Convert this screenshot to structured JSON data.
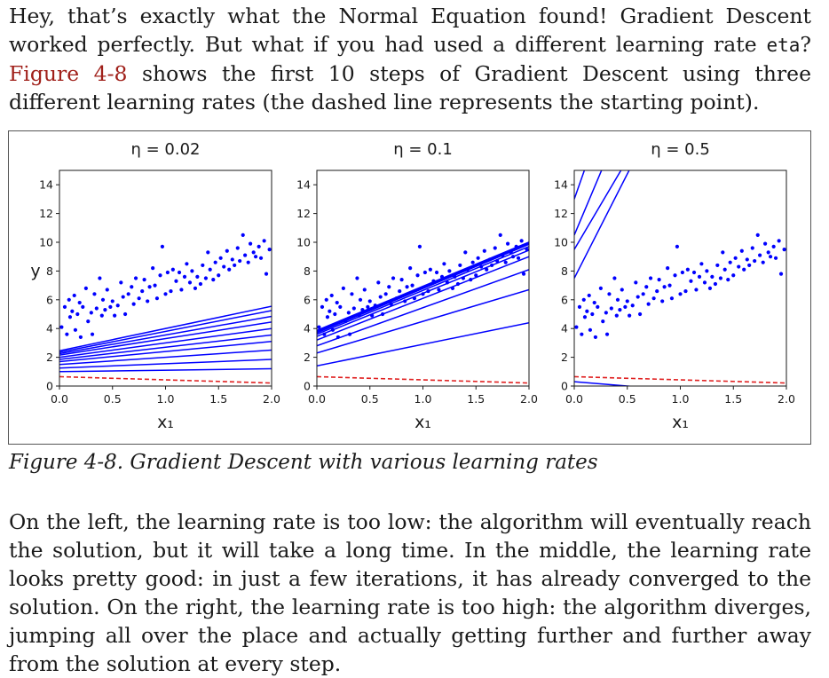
{
  "intro": {
    "part1": "Hey, that’s exactly what the Normal Equation found! Gradient Descent worked perfectly. But what if you had used a different learning rate ",
    "code": "eta",
    "part2": "? ",
    "figure_ref": "Figure 4-8",
    "part3": " shows the first 10 steps of Gradient Descent using three different learning rates (the dashed line represents the starting point)."
  },
  "caption": "Figure 4-8. Gradient Descent with various learning rates",
  "outro": "On the left, the learning rate is too low: the algorithm will eventually reach the solution, but it will take a long time. In the middle, the learning rate looks pretty good: in just a few iterations, it has already converged to the solution. On the right, the learning rate is too high: the algorithm diverges, jumping all over the place and actually getting further and further away from the solution at every step.",
  "chart_data": [
    {
      "type": "scatter",
      "title": "η = 0.02",
      "xlabel": "x₁",
      "ylabel": "y",
      "xlim": [
        0,
        2
      ],
      "ylim": [
        0,
        15
      ],
      "xticks": [
        "0.0",
        "0.5",
        "1.0",
        "1.5",
        "2.0"
      ],
      "yticks": [
        "0",
        "2",
        "4",
        "6",
        "8",
        "10",
        "12",
        "14"
      ],
      "colors": {
        "points": "#0000ff",
        "lines": "#0000ff",
        "start_line": "#e02020"
      },
      "start_line": {
        "intercept": 0.65,
        "slope": -0.22
      },
      "lines": [
        {
          "intercept": 1.0,
          "slope": 0.1
        },
        {
          "intercept": 1.25,
          "slope": 0.3
        },
        {
          "intercept": 1.5,
          "slope": 0.5
        },
        {
          "intercept": 1.7,
          "slope": 0.7
        },
        {
          "intercept": 1.85,
          "slope": 0.85
        },
        {
          "intercept": 2.0,
          "slope": 1.0
        },
        {
          "intercept": 2.15,
          "slope": 1.15
        },
        {
          "intercept": 2.25,
          "slope": 1.3
        },
        {
          "intercept": 2.35,
          "slope": 1.45
        },
        {
          "intercept": 2.45,
          "slope": 1.55
        }
      ]
    },
    {
      "type": "scatter",
      "title": "η = 0.1",
      "xlabel": "x₁",
      "xlim": [
        0,
        2
      ],
      "ylim": [
        0,
        15
      ],
      "xticks": [
        "0.0",
        "0.5",
        "1.0",
        "1.5",
        "2.0"
      ],
      "yticks": [
        "0",
        "2",
        "4",
        "6",
        "8",
        "10",
        "12",
        "14"
      ],
      "colors": {
        "points": "#0000ff",
        "lines": "#0000ff",
        "start_line": "#e02020"
      },
      "start_line": {
        "intercept": 0.65,
        "slope": -0.22
      },
      "lines": [
        {
          "intercept": 1.4,
          "slope": 1.5
        },
        {
          "intercept": 2.3,
          "slope": 2.2
        },
        {
          "intercept": 2.8,
          "slope": 2.65
        },
        {
          "intercept": 3.2,
          "slope": 2.9
        },
        {
          "intercept": 3.45,
          "slope": 3.0
        },
        {
          "intercept": 3.6,
          "slope": 3.05
        },
        {
          "intercept": 3.7,
          "slope": 3.08
        },
        {
          "intercept": 3.78,
          "slope": 3.08
        },
        {
          "intercept": 3.83,
          "slope": 3.08
        },
        {
          "intercept": 3.87,
          "slope": 3.07
        }
      ]
    },
    {
      "type": "scatter",
      "title": "η = 0.5",
      "xlabel": "x₁",
      "xlim": [
        0,
        2
      ],
      "ylim": [
        0,
        15
      ],
      "xticks": [
        "0.0",
        "0.5",
        "1.0",
        "1.5",
        "2.0"
      ],
      "yticks": [
        "0",
        "2",
        "4",
        "6",
        "8",
        "10",
        "12",
        "14"
      ],
      "colors": {
        "points": "#0000ff",
        "lines": "#0000ff",
        "start_line": "#e02020"
      },
      "start_line": {
        "intercept": 0.65,
        "slope": -0.22
      },
      "lines": [
        {
          "intercept": 0.3,
          "slope": -0.6
        },
        {
          "intercept": 9.5,
          "slope": 12.5
        },
        {
          "intercept": 7.5,
          "slope": 14.5
        },
        {
          "intercept": 10.5,
          "slope": 17.5
        },
        {
          "intercept": 13.0,
          "slope": 21.0
        }
      ]
    }
  ],
  "scatter_points": [
    [
      0.02,
      4.1
    ],
    [
      0.05,
      5.5
    ],
    [
      0.07,
      3.6
    ],
    [
      0.09,
      6.0
    ],
    [
      0.1,
      4.8
    ],
    [
      0.12,
      5.2
    ],
    [
      0.14,
      6.3
    ],
    [
      0.15,
      3.9
    ],
    [
      0.17,
      5.0
    ],
    [
      0.19,
      5.8
    ],
    [
      0.2,
      3.4
    ],
    [
      0.22,
      5.5
    ],
    [
      0.25,
      6.8
    ],
    [
      0.27,
      4.5
    ],
    [
      0.3,
      5.1
    ],
    [
      0.31,
      3.6
    ],
    [
      0.33,
      6.4
    ],
    [
      0.35,
      5.4
    ],
    [
      0.38,
      7.5
    ],
    [
      0.4,
      4.9
    ],
    [
      0.41,
      6.0
    ],
    [
      0.43,
      5.3
    ],
    [
      0.45,
      6.7
    ],
    [
      0.48,
      5.5
    ],
    [
      0.5,
      5.9
    ],
    [
      0.52,
      4.9
    ],
    [
      0.55,
      5.6
    ],
    [
      0.58,
      7.2
    ],
    [
      0.6,
      6.2
    ],
    [
      0.62,
      5.0
    ],
    [
      0.65,
      6.4
    ],
    [
      0.68,
      6.9
    ],
    [
      0.7,
      5.7
    ],
    [
      0.72,
      7.5
    ],
    [
      0.75,
      6.1
    ],
    [
      0.78,
      6.6
    ],
    [
      0.8,
      7.4
    ],
    [
      0.83,
      5.9
    ],
    [
      0.85,
      6.9
    ],
    [
      0.88,
      8.2
    ],
    [
      0.9,
      7.0
    ],
    [
      0.92,
      6.1
    ],
    [
      0.95,
      7.7
    ],
    [
      0.97,
      9.7
    ],
    [
      1.0,
      6.4
    ],
    [
      1.02,
      7.9
    ],
    [
      1.05,
      6.6
    ],
    [
      1.07,
      8.1
    ],
    [
      1.1,
      7.3
    ],
    [
      1.13,
      7.9
    ],
    [
      1.15,
      6.7
    ],
    [
      1.18,
      7.6
    ],
    [
      1.2,
      8.5
    ],
    [
      1.23,
      7.2
    ],
    [
      1.25,
      8.0
    ],
    [
      1.28,
      6.8
    ],
    [
      1.3,
      7.6
    ],
    [
      1.33,
      7.1
    ],
    [
      1.35,
      8.4
    ],
    [
      1.38,
      7.5
    ],
    [
      1.4,
      9.3
    ],
    [
      1.42,
      8.1
    ],
    [
      1.45,
      7.4
    ],
    [
      1.47,
      8.6
    ],
    [
      1.5,
      7.7
    ],
    [
      1.52,
      8.9
    ],
    [
      1.55,
      8.3
    ],
    [
      1.58,
      9.4
    ],
    [
      1.6,
      8.1
    ],
    [
      1.63,
      8.8
    ],
    [
      1.65,
      8.4
    ],
    [
      1.68,
      9.6
    ],
    [
      1.7,
      8.7
    ],
    [
      1.73,
      10.5
    ],
    [
      1.75,
      9.1
    ],
    [
      1.78,
      8.6
    ],
    [
      1.8,
      9.9
    ],
    [
      1.83,
      9.3
    ],
    [
      1.85,
      9.0
    ],
    [
      1.88,
      9.7
    ],
    [
      1.9,
      8.9
    ],
    [
      1.93,
      10.1
    ],
    [
      1.95,
      7.8
    ],
    [
      1.98,
      9.5
    ]
  ]
}
